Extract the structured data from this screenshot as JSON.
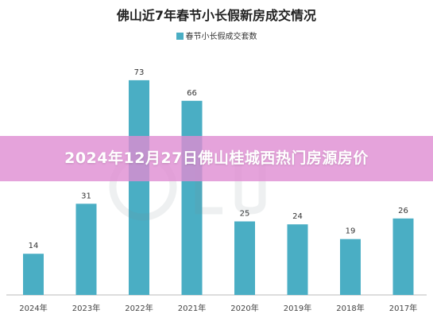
{
  "chart_data": {
    "type": "bar",
    "title": "佛山近7年春节小长假新房成交情况",
    "series": [
      {
        "name": "春节小长假成交套数",
        "values": [
          14,
          31,
          73,
          66,
          25,
          24,
          19,
          26
        ]
      }
    ],
    "categories": [
      "2024年",
      "2023年",
      "2022年",
      "2021年",
      "2020年",
      "2019年",
      "2018年",
      "2017年"
    ],
    "ylim": [
      0,
      80
    ],
    "grid": false,
    "legend_position": "top-center",
    "colors": {
      "bar": "#4aaec4"
    }
  },
  "banner": {
    "text": "2024年12月27日佛山桂城西热门房源房价"
  },
  "colors": {
    "banner": "#de8cd2"
  }
}
